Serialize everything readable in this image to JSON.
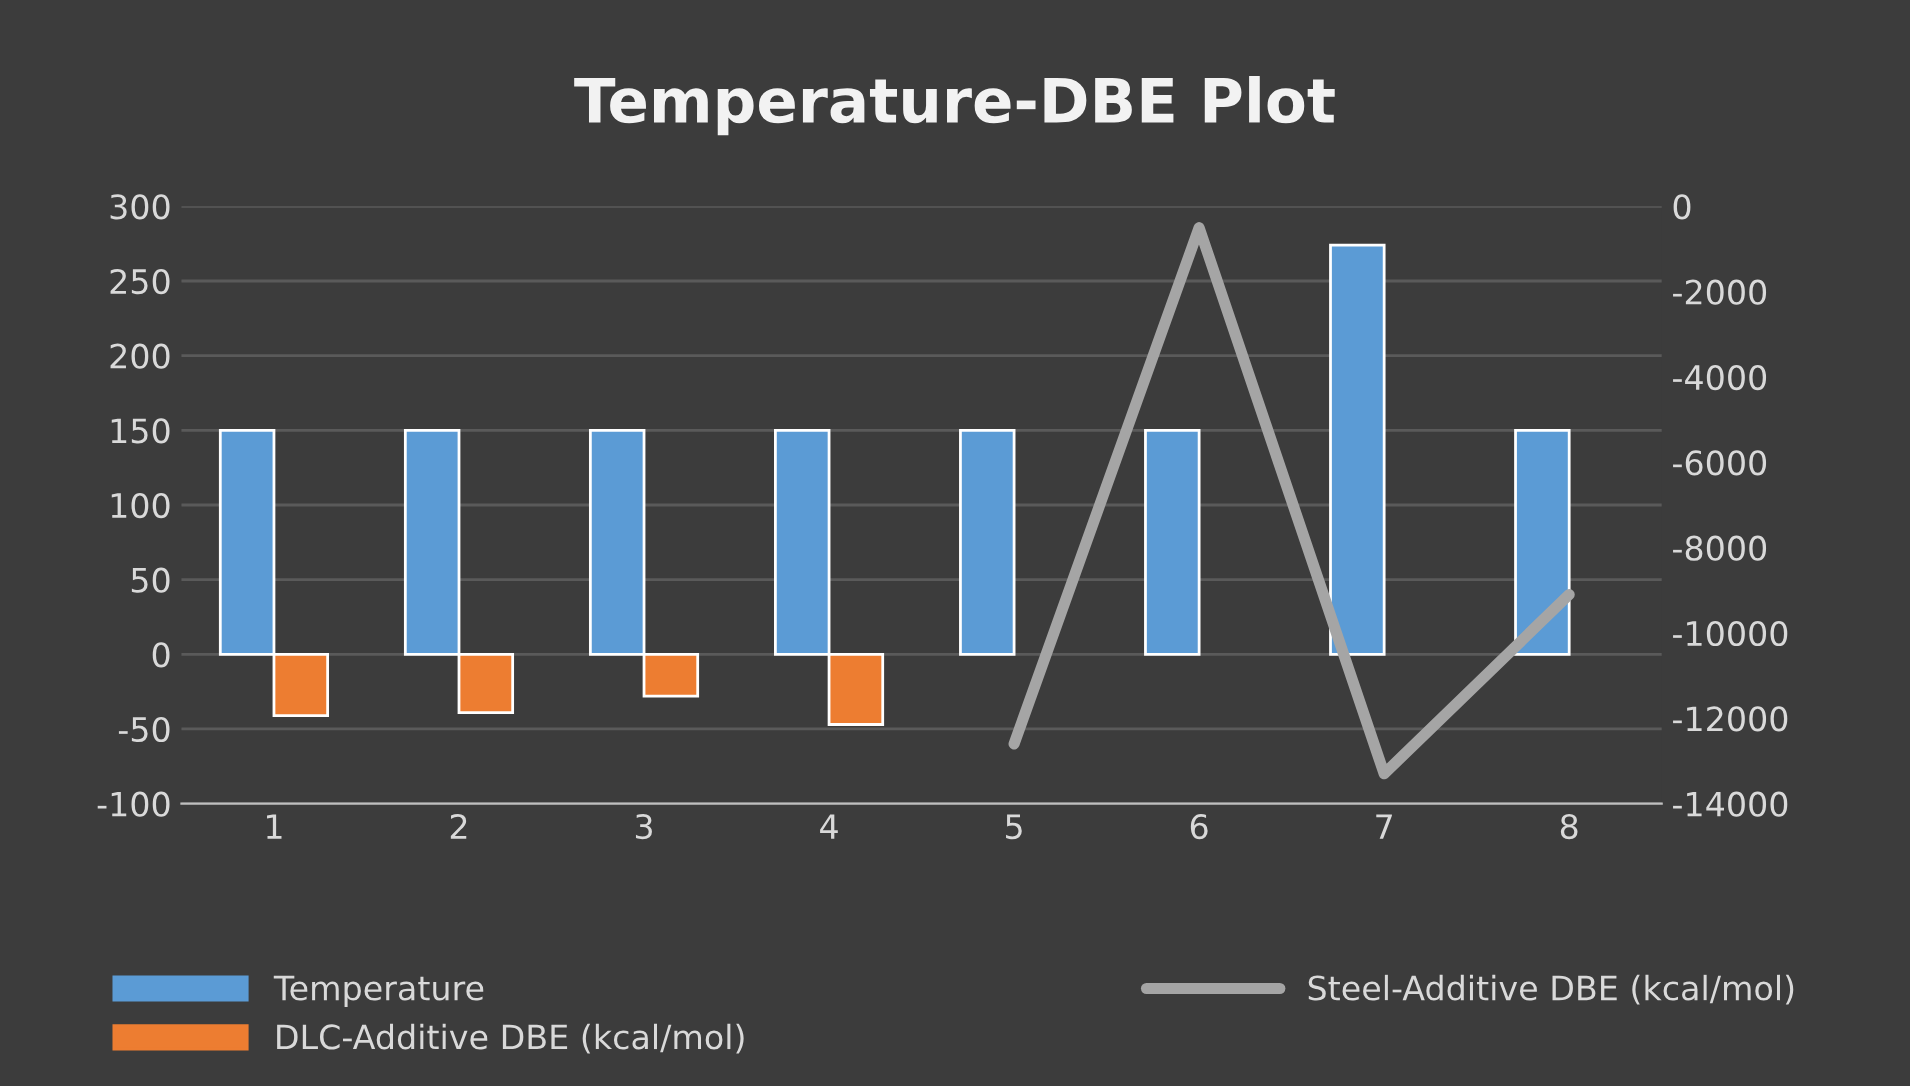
{
  "chart_data": {
    "type": "bar",
    "title": "Temperature-DBE Plot",
    "categories": [
      "1",
      "2",
      "3",
      "4",
      "5",
      "6",
      "7",
      "8"
    ],
    "series": [
      {
        "name": "Temperature",
        "color": "#5b9bd5",
        "values": [
          150,
          150,
          150,
          150,
          150,
          150,
          274,
          150
        ]
      },
      {
        "name": "DLC-Additive DBE (kcal/mol)",
        "color": "#ed7d31",
        "values": [
          -41,
          -39,
          -28,
          -47,
          null,
          null,
          null,
          null
        ]
      },
      {
        "name": "Steel-Additive DBE (kcal/mol)",
        "type": "line",
        "axis": "y2",
        "color": "#a5a5a5",
        "values": [
          null,
          null,
          null,
          null,
          -12600,
          -500,
          -13300,
          -9100
        ]
      }
    ],
    "ylim": [
      -100,
      300
    ],
    "yticks": [
      -100,
      -50,
      0,
      50,
      100,
      150,
      200,
      250,
      300
    ],
    "y2lim": [
      -14000,
      0
    ],
    "y2ticks": [
      -14000,
      -12000,
      -10000,
      -8000,
      -6000,
      -4000,
      -2000,
      0
    ],
    "grid": "y",
    "legend": "bottom",
    "marker": "none",
    "line_style": "solid"
  }
}
